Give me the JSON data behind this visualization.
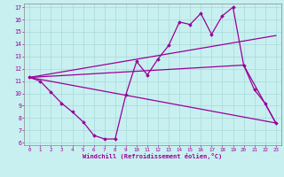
{
  "xlabel": "Windchill (Refroidissement éolien,°C)",
  "background_color": "#c8f0f0",
  "line_color": "#990099",
  "grid_color": "#a8d8d8",
  "xlim": [
    -0.5,
    23.5
  ],
  "ylim": [
    5.8,
    17.3
  ],
  "xticks": [
    0,
    1,
    2,
    3,
    4,
    5,
    6,
    7,
    8,
    9,
    10,
    11,
    12,
    13,
    14,
    15,
    16,
    17,
    18,
    19,
    20,
    21,
    22,
    23
  ],
  "yticks": [
    6,
    7,
    8,
    9,
    10,
    11,
    12,
    13,
    14,
    15,
    16,
    17
  ],
  "line1_x": [
    0,
    1,
    2,
    3,
    4,
    5,
    6,
    7,
    8,
    9,
    10,
    11,
    12,
    13,
    14,
    15,
    16,
    17,
    18,
    19,
    20,
    21,
    22,
    23
  ],
  "line1_y": [
    11.3,
    11.0,
    10.1,
    9.2,
    8.5,
    7.7,
    6.6,
    6.3,
    6.3,
    9.9,
    12.6,
    11.5,
    12.8,
    13.9,
    15.8,
    15.6,
    16.5,
    14.8,
    16.3,
    17.0,
    12.3,
    10.3,
    9.2,
    7.6
  ],
  "line2_x": [
    0,
    23
  ],
  "line2_y": [
    11.3,
    14.7
  ],
  "line3_x": [
    0,
    20,
    23
  ],
  "line3_y": [
    11.3,
    12.3,
    7.6
  ],
  "line4_x": [
    0,
    23
  ],
  "line4_y": [
    11.3,
    7.6
  ]
}
